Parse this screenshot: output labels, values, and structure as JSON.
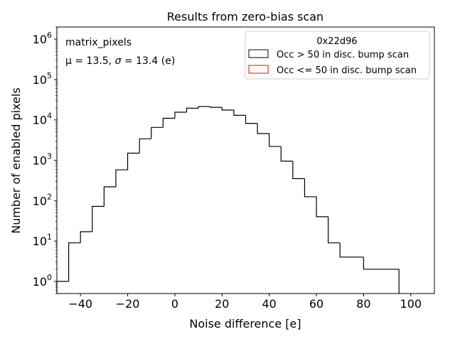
{
  "chart_data": {
    "type": "histogram",
    "title": "Results from zero-bias scan",
    "xlabel": "Noise difference [e]",
    "ylabel": "Number of enabled pixels",
    "xlim": [
      -50,
      110
    ],
    "ylim": [
      0.5,
      2000000
    ],
    "yscale": "log",
    "x_ticks": [
      -40,
      -20,
      0,
      20,
      40,
      60,
      80,
      100
    ],
    "x_tick_labels": [
      "−40",
      "−20",
      "0",
      "20",
      "40",
      "60",
      "80",
      "100"
    ],
    "y_ticks": [
      1,
      10,
      100,
      1000,
      10000,
      100000,
      1000000
    ],
    "y_tick_labels": [
      {
        "base": "10",
        "exp": "0"
      },
      {
        "base": "10",
        "exp": "1"
      },
      {
        "base": "10",
        "exp": "2"
      },
      {
        "base": "10",
        "exp": "3"
      },
      {
        "base": "10",
        "exp": "4"
      },
      {
        "base": "10",
        "exp": "5"
      },
      {
        "base": "10",
        "exp": "6"
      }
    ],
    "annotations": {
      "name": "matrix_pixels",
      "stats_prefix": "μ = 13.5, ",
      "stats_sigma": "σ",
      "stats_suffix": " = 13.4 (e)"
    },
    "legend": {
      "title": "0x22d96",
      "position": "top-right",
      "entries": [
        {
          "label": "Occ > 50 in disc. bump scan",
          "color": "#000000"
        },
        {
          "label": "Occ <= 50 in disc. bump scan",
          "color": "#ff0000"
        }
      ]
    },
    "series": [
      {
        "name": "Occ > 50 in disc. bump scan",
        "color": "#000000",
        "bins": [
          {
            "x0": -50,
            "x1": -45,
            "count": 1
          },
          {
            "x0": -45,
            "x1": -40,
            "count": 9
          },
          {
            "x0": -40,
            "x1": -35,
            "count": 17
          },
          {
            "x0": -35,
            "x1": -30,
            "count": 72
          },
          {
            "x0": -30,
            "x1": -25,
            "count": 220
          },
          {
            "x0": -25,
            "x1": -20,
            "count": 580
          },
          {
            "x0": -20,
            "x1": -15,
            "count": 1500
          },
          {
            "x0": -15,
            "x1": -10,
            "count": 3400
          },
          {
            "x0": -10,
            "x1": -5,
            "count": 6500
          },
          {
            "x0": -5,
            "x1": 0,
            "count": 11000
          },
          {
            "x0": 0,
            "x1": 5,
            "count": 15500
          },
          {
            "x0": 5,
            "x1": 10,
            "count": 19500
          },
          {
            "x0": 10,
            "x1": 15,
            "count": 21500
          },
          {
            "x0": 15,
            "x1": 20,
            "count": 20500
          },
          {
            "x0": 20,
            "x1": 25,
            "count": 17500
          },
          {
            "x0": 25,
            "x1": 30,
            "count": 13000
          },
          {
            "x0": 30,
            "x1": 35,
            "count": 8200
          },
          {
            "x0": 35,
            "x1": 40,
            "count": 4600
          },
          {
            "x0": 40,
            "x1": 45,
            "count": 2200
          },
          {
            "x0": 45,
            "x1": 50,
            "count": 950
          },
          {
            "x0": 50,
            "x1": 55,
            "count": 350
          },
          {
            "x0": 55,
            "x1": 60,
            "count": 125
          },
          {
            "x0": 60,
            "x1": 65,
            "count": 40
          },
          {
            "x0": 65,
            "x1": 70,
            "count": 9
          },
          {
            "x0": 70,
            "x1": 80,
            "count": 4
          },
          {
            "x0": 80,
            "x1": 95,
            "count": 2
          }
        ]
      },
      {
        "name": "Occ <= 50 in disc. bump scan",
        "color": "#ff0000",
        "bins": []
      }
    ]
  }
}
